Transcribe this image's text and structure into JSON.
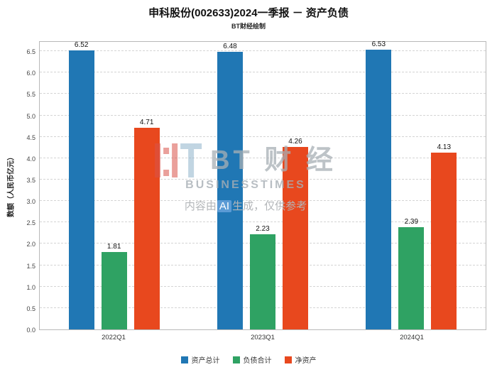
{
  "title": "申科股份(002633)2024一季报 － 资产负债",
  "subtitle": "BT财经绘制",
  "watermark": {
    "brand_cn": "BT 财 经",
    "brand_en": "BUSINESSTIMES",
    "disclaimer_prefix": "内容由",
    "disclaimer_ai": "AI",
    "disclaimer_suffix": "生成，仅供参考"
  },
  "chart_data": {
    "type": "bar",
    "categories": [
      "2022Q1",
      "2023Q1",
      "2024Q1"
    ],
    "series": [
      {
        "name": "资产总计",
        "color": "#2077b4",
        "values": [
          6.52,
          6.48,
          6.53
        ]
      },
      {
        "name": "负债合计",
        "color": "#2fa263",
        "values": [
          1.81,
          2.23,
          2.39
        ]
      },
      {
        "name": "净资产",
        "color": "#e8481e",
        "values": [
          4.71,
          4.26,
          4.13
        ]
      }
    ],
    "title": "申科股份(002633)2024一季报 － 资产负债",
    "xlabel": "",
    "ylabel": "数额（人民币亿元）",
    "ylim": [
      0,
      6.75
    ],
    "ytick_step": 0.5,
    "grid": true,
    "legend_position": "bottom"
  }
}
